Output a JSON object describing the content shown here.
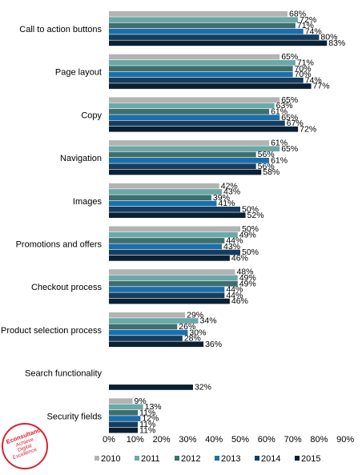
{
  "chart_data": {
    "type": "bar",
    "orientation": "horizontal",
    "categories": [
      "Call to action buttons",
      "Page layout",
      "Copy",
      "Navigation",
      "Images",
      "Promotions and offers",
      "Checkout process",
      "Product selection process",
      "Search functionality",
      "Security fields"
    ],
    "series": [
      {
        "name": "2010",
        "color": "#b3b3b3",
        "values": [
          68,
          65,
          65,
          61,
          42,
          50,
          48,
          29,
          null,
          9
        ]
      },
      {
        "name": "2011",
        "color": "#6aa9a8",
        "values": [
          72,
          71,
          63,
          65,
          43,
          49,
          49,
          34,
          null,
          13
        ]
      },
      {
        "name": "2012",
        "color": "#3f6f6d",
        "values": [
          71,
          70,
          61,
          56,
          39,
          44,
          49,
          26,
          null,
          11
        ]
      },
      {
        "name": "2013",
        "color": "#1b6fae",
        "values": [
          74,
          70,
          65,
          61,
          41,
          43,
          44,
          30,
          null,
          12
        ]
      },
      {
        "name": "2014",
        "color": "#173d5e",
        "values": [
          80,
          74,
          67,
          56,
          50,
          50,
          44,
          28,
          null,
          11
        ]
      },
      {
        "name": "2015",
        "color": "#0b2033",
        "values": [
          83,
          77,
          72,
          58,
          52,
          46,
          46,
          36,
          32,
          11
        ]
      }
    ],
    "xlim": [
      0,
      90
    ],
    "xticks": [
      "0%",
      "10%",
      "20%",
      "30%",
      "40%",
      "50%",
      "60%",
      "70%",
      "80%",
      "90%"
    ],
    "value_suffix": "%",
    "grid": false,
    "legend_position": "bottom"
  },
  "logo": {
    "brand": "Econsultancy",
    "tagline": [
      "Achieve",
      "Digital",
      "Excellence"
    ]
  }
}
